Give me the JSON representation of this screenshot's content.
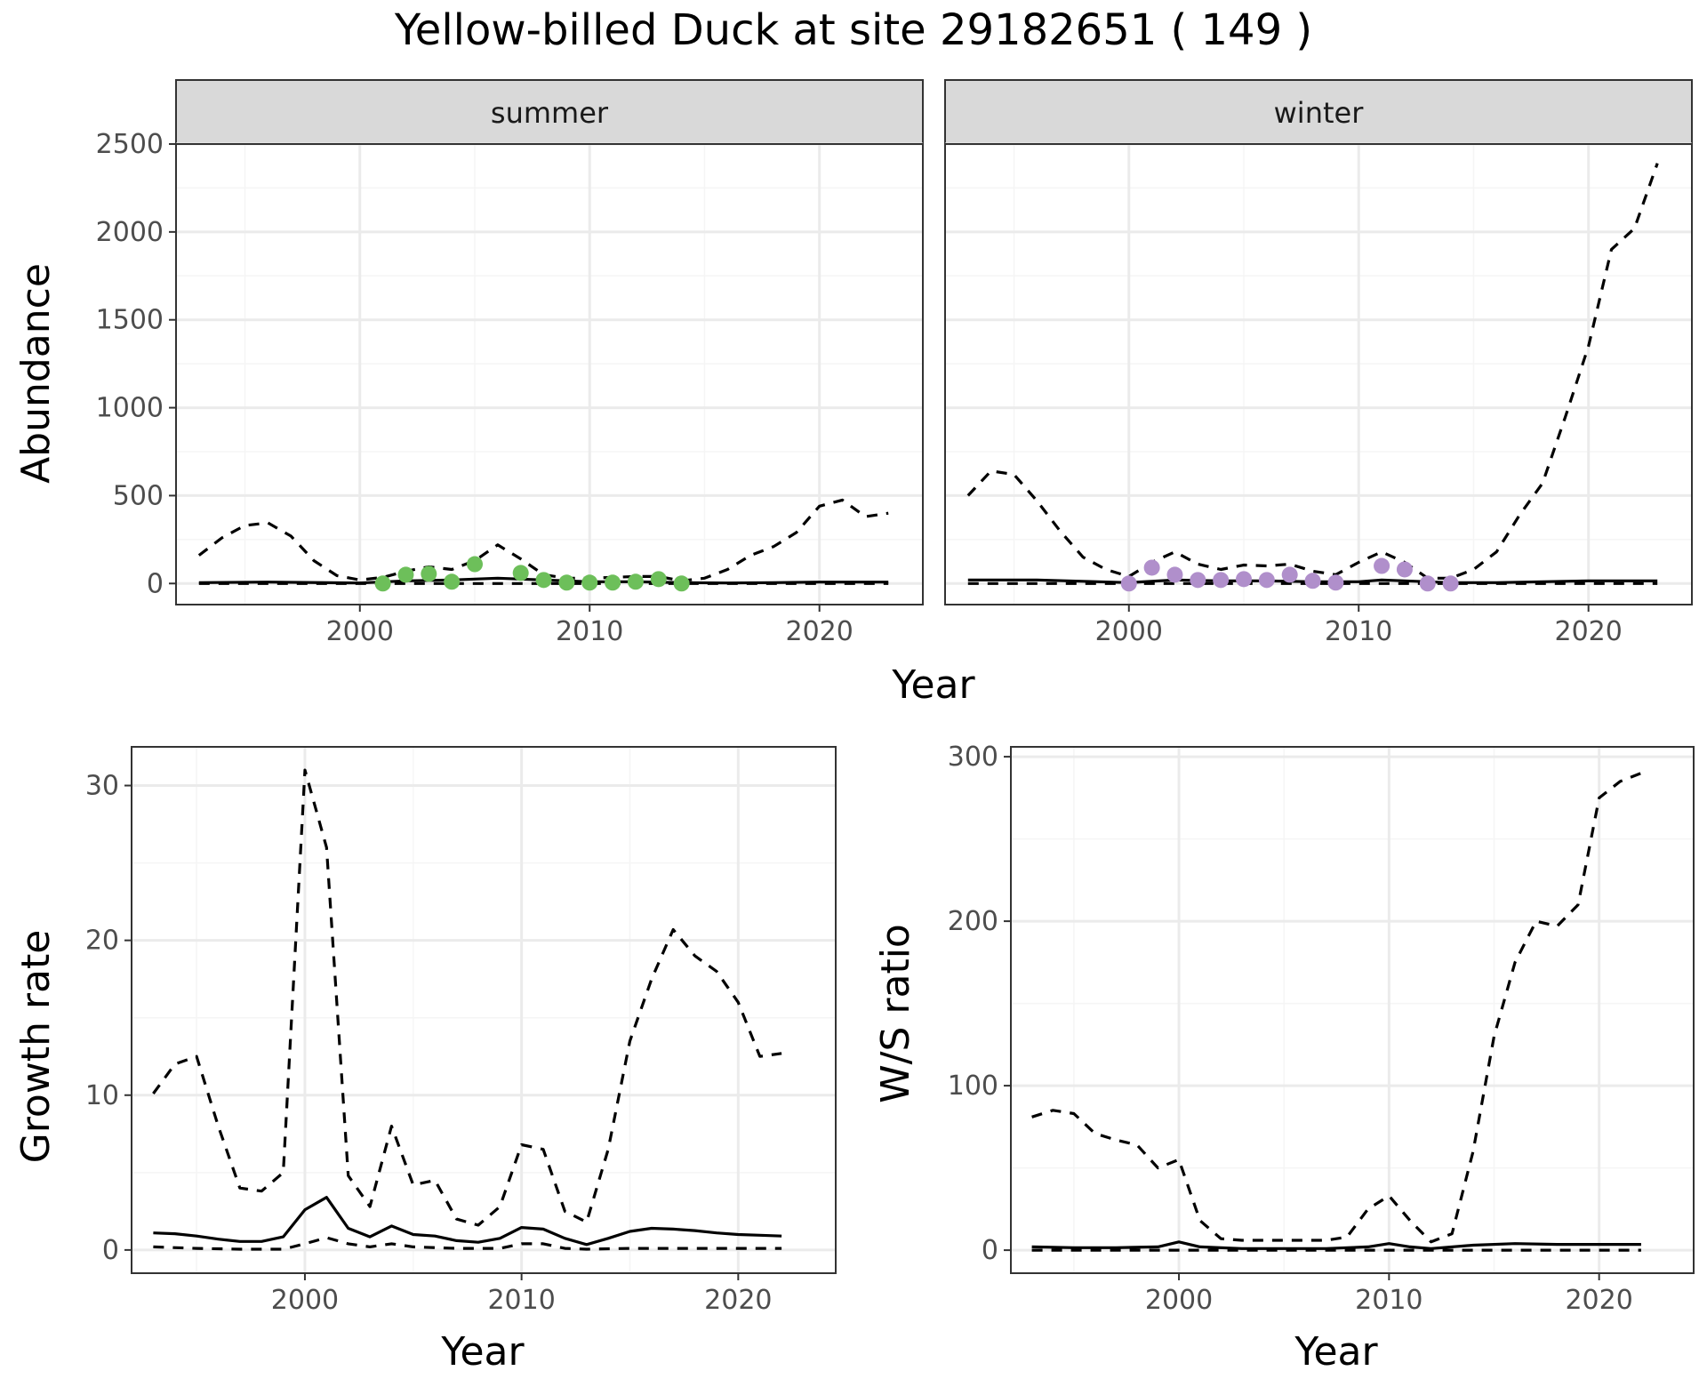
{
  "title": "Yellow-billed Duck at site 29182651 ( 149 )",
  "colors": {
    "summer_points": "#6dbf5a",
    "winter_points": "#b08fcb",
    "line": "#000000",
    "strip_bg": "#d9d9d9",
    "grid_major": "#ebebeb",
    "grid_minor": "#f5f5f5"
  },
  "chart_data": [
    {
      "type": "line",
      "facet": "summer",
      "xlabel": "Year",
      "ylabel": "Abundance",
      "xlim": [
        1992,
        2024.5
      ],
      "ylim": [
        -120,
        2500
      ],
      "xticks": [
        2000,
        2010,
        2020
      ],
      "yticks": [
        0,
        500,
        1000,
        1500,
        2000,
        2500
      ],
      "series": [
        {
          "style": "solid",
          "x": [
            1993,
            1996,
            2000,
            2002,
            2004,
            2006,
            2008,
            2010,
            2012,
            2014,
            2016,
            2018,
            2020,
            2023
          ],
          "y": [
            5,
            8,
            3,
            15,
            20,
            30,
            20,
            10,
            10,
            5,
            3,
            5,
            8,
            8
          ]
        },
        {
          "style": "dashed-lower",
          "x": [
            1993,
            2000,
            2005,
            2010,
            2015,
            2020,
            2023
          ],
          "y": [
            0,
            0,
            0,
            0,
            0,
            0,
            0
          ]
        },
        {
          "style": "dashed-upper",
          "x": [
            1993,
            1994,
            1995,
            1996,
            1997,
            1998,
            1999,
            2000,
            2001,
            2002,
            2003,
            2004,
            2005,
            2006,
            2007,
            2008,
            2009,
            2010,
            2011,
            2012,
            2013,
            2014,
            2015,
            2016,
            2017,
            2018,
            2019,
            2020,
            2021,
            2022,
            2023
          ],
          "y": [
            160,
            260,
            330,
            345,
            270,
            130,
            45,
            20,
            35,
            70,
            95,
            80,
            130,
            220,
            140,
            50,
            30,
            30,
            35,
            40,
            40,
            15,
            30,
            80,
            160,
            210,
            290,
            440,
            475,
            380,
            400
          ]
        },
        {
          "style": "points",
          "x": [
            2001,
            2002,
            2003,
            2004,
            2005,
            2007,
            2008,
            2009,
            2010,
            2011,
            2012,
            2013,
            2014
          ],
          "y": [
            0,
            50,
            55,
            10,
            110,
            60,
            20,
            5,
            5,
            5,
            10,
            25,
            0
          ]
        }
      ]
    },
    {
      "type": "line",
      "facet": "winter",
      "xlabel": "Year",
      "ylabel": "Abundance",
      "xlim": [
        1992,
        2024.5
      ],
      "ylim": [
        -120,
        2500
      ],
      "xticks": [
        2000,
        2010,
        2020
      ],
      "yticks": [
        0,
        500,
        1000,
        1500,
        2000,
        2500
      ],
      "series": [
        {
          "style": "solid",
          "x": [
            1993,
            1996,
            2000,
            2002,
            2004,
            2006,
            2008,
            2010,
            2011,
            2012,
            2014,
            2016,
            2018,
            2020,
            2023
          ],
          "y": [
            20,
            20,
            5,
            20,
            15,
            15,
            10,
            10,
            20,
            15,
            5,
            5,
            10,
            15,
            15
          ]
        },
        {
          "style": "dashed-lower",
          "x": [
            1993,
            2000,
            2005,
            2010,
            2015,
            2020,
            2023
          ],
          "y": [
            0,
            0,
            0,
            0,
            0,
            0,
            0
          ]
        },
        {
          "style": "dashed-upper",
          "x": [
            1993,
            1994,
            1995,
            1996,
            1997,
            1998,
            1999,
            2000,
            2001,
            2002,
            2003,
            2004,
            2005,
            2006,
            2007,
            2008,
            2009,
            2010,
            2011,
            2012,
            2013,
            2014,
            2015,
            2016,
            2017,
            2018,
            2019,
            2020,
            2021,
            2022,
            2023
          ],
          "y": [
            500,
            640,
            620,
            470,
            300,
            150,
            80,
            40,
            120,
            180,
            110,
            80,
            105,
            100,
            110,
            70,
            50,
            120,
            180,
            120,
            30,
            30,
            80,
            180,
            390,
            570,
            950,
            1350,
            1900,
            2020,
            2390
          ]
        },
        {
          "style": "points",
          "x": [
            2000,
            2001,
            2002,
            2003,
            2004,
            2005,
            2006,
            2007,
            2008,
            2009,
            2011,
            2012,
            2013,
            2014
          ],
          "y": [
            0,
            90,
            50,
            20,
            20,
            25,
            20,
            50,
            15,
            5,
            100,
            80,
            0,
            0
          ]
        }
      ]
    },
    {
      "type": "line",
      "xlabel": "Year",
      "ylabel": "Growth rate",
      "xlim": [
        1992,
        2024.5
      ],
      "ylim": [
        -1.5,
        32.5
      ],
      "xticks": [
        2000,
        2010,
        2020
      ],
      "yticks": [
        0,
        10,
        20,
        30
      ],
      "series": [
        {
          "style": "solid",
          "x": [
            1993,
            1994,
            1995,
            1996,
            1997,
            1998,
            1999,
            2000,
            2001,
            2002,
            2003,
            2004,
            2005,
            2006,
            2007,
            2008,
            2009,
            2010,
            2011,
            2012,
            2013,
            2014,
            2015,
            2016,
            2017,
            2018,
            2019,
            2020,
            2021,
            2022
          ],
          "y": [
            1.1,
            1.05,
            0.9,
            0.7,
            0.55,
            0.55,
            0.85,
            2.6,
            3.4,
            1.4,
            0.85,
            1.55,
            1.0,
            0.9,
            0.6,
            0.5,
            0.75,
            1.45,
            1.35,
            0.75,
            0.35,
            0.75,
            1.2,
            1.4,
            1.35,
            1.25,
            1.1,
            1.0,
            0.95,
            0.9
          ]
        },
        {
          "style": "dashed-lower",
          "x": [
            1993,
            1995,
            1997,
            1999,
            2000,
            2001,
            2002,
            2003,
            2004,
            2005,
            2007,
            2009,
            2010,
            2011,
            2012,
            2013,
            2015,
            2017,
            2019,
            2022
          ],
          "y": [
            0.2,
            0.1,
            0.05,
            0.05,
            0.4,
            0.8,
            0.4,
            0.2,
            0.4,
            0.2,
            0.1,
            0.1,
            0.4,
            0.4,
            0.1,
            0.05,
            0.1,
            0.1,
            0.1,
            0.1
          ]
        },
        {
          "style": "dashed-upper",
          "x": [
            1993,
            1994,
            1995,
            1996,
            1997,
            1998,
            1999,
            2000,
            2001,
            2002,
            2003,
            2004,
            2005,
            2006,
            2007,
            2008,
            2009,
            2010,
            2011,
            2012,
            2013,
            2014,
            2015,
            2016,
            2017,
            2018,
            2019,
            2020,
            2021,
            2022
          ],
          "y": [
            10.1,
            12.0,
            12.5,
            8.0,
            4.0,
            3.8,
            5.0,
            31.0,
            26.0,
            4.8,
            2.8,
            8.0,
            4.2,
            4.5,
            2.0,
            1.6,
            2.8,
            6.8,
            6.5,
            2.5,
            1.8,
            6.5,
            13.5,
            17.5,
            20.7,
            19.0,
            18.0,
            16.0,
            12.5,
            12.7
          ]
        }
      ]
    },
    {
      "type": "line",
      "xlabel": "Year",
      "ylabel": "W/S ratio",
      "xlim": [
        1992,
        2024.5
      ],
      "ylim": [
        -14,
        306
      ],
      "xticks": [
        2000,
        2010,
        2020
      ],
      "yticks": [
        0,
        100,
        200,
        300
      ],
      "series": [
        {
          "style": "solid",
          "x": [
            1993,
            1995,
            1997,
            1999,
            2000,
            2001,
            2003,
            2005,
            2007,
            2009,
            2010,
            2011,
            2012,
            2014,
            2016,
            2018,
            2020,
            2022
          ],
          "y": [
            2,
            1.5,
            1.5,
            2,
            5,
            2,
            1,
            1,
            1,
            2,
            4,
            2,
            1,
            3,
            4,
            3.5,
            3.5,
            3.5
          ]
        },
        {
          "style": "dashed-lower",
          "x": [
            1993,
            2000,
            2005,
            2010,
            2015,
            2020,
            2022
          ],
          "y": [
            0,
            0,
            0,
            0,
            0,
            0,
            0
          ]
        },
        {
          "style": "dashed-upper",
          "x": [
            1993,
            1994,
            1995,
            1996,
            1997,
            1998,
            1999,
            2000,
            2001,
            2002,
            2003,
            2004,
            2005,
            2006,
            2007,
            2008,
            2009,
            2010,
            2011,
            2012,
            2013,
            2014,
            2015,
            2016,
            2017,
            2018,
            2019,
            2020,
            2021,
            2022
          ],
          "y": [
            81,
            85,
            83,
            71,
            67,
            64,
            50,
            55,
            18,
            7,
            6,
            6,
            6,
            6,
            6,
            8,
            25,
            33,
            18,
            5,
            10,
            60,
            130,
            175,
            200,
            197,
            210,
            275,
            285,
            290
          ]
        }
      ]
    }
  ],
  "facets": {
    "summer": "summer",
    "winter": "winter"
  },
  "labels": {
    "top_xlabel": "Year",
    "top_ylabel": "Abundance",
    "bl_xlabel": "Year",
    "bl_ylabel": "Growth rate",
    "br_xlabel": "Year",
    "br_ylabel": "W/S ratio"
  }
}
